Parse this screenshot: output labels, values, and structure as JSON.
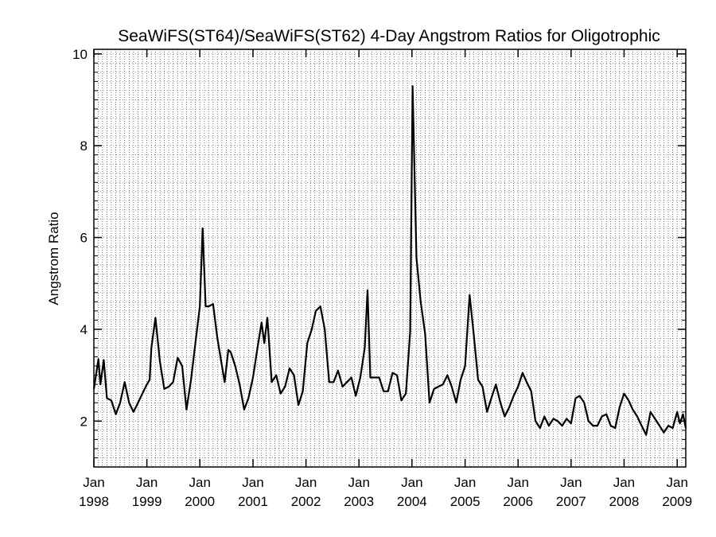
{
  "chart_data": {
    "type": "line",
    "title": "SeaWiFS(ST64)/SeaWiFS(ST62) 4-Day Angstrom Ratios for Oligotrophic",
    "xlabel": "",
    "ylabel": "Angstrom Ratio",
    "x_axis": {
      "type": "date",
      "range": [
        "1998-01-01",
        "2009-03-01"
      ],
      "tick_labels": [
        {
          "date": "1998-01-01",
          "month": "Jan",
          "year": "1998"
        },
        {
          "date": "1999-01-01",
          "month": "Jan",
          "year": "1999"
        },
        {
          "date": "2000-01-01",
          "month": "Jan",
          "year": "2000"
        },
        {
          "date": "2001-01-01",
          "month": "Jan",
          "year": "2001"
        },
        {
          "date": "2002-01-01",
          "month": "Jan",
          "year": "2002"
        },
        {
          "date": "2003-01-01",
          "month": "Jan",
          "year": "2003"
        },
        {
          "date": "2004-01-01",
          "month": "Jan",
          "year": "2004"
        },
        {
          "date": "2005-01-01",
          "month": "Jan",
          "year": "2005"
        },
        {
          "date": "2006-01-01",
          "month": "Jan",
          "year": "2006"
        },
        {
          "date": "2007-01-01",
          "month": "Jan",
          "year": "2007"
        },
        {
          "date": "2008-01-01",
          "month": "Jan",
          "year": "2008"
        },
        {
          "date": "2009-01-01",
          "month": "Jan",
          "year": "2009"
        }
      ]
    },
    "y_axis": {
      "range": [
        1.0,
        10.1
      ],
      "ticks": [
        2,
        4,
        6,
        8,
        10
      ]
    },
    "grid": true,
    "grid_style": "dotted vertical lines (monthly) and horizontal dotted lines",
    "series": [
      {
        "color": "#000000",
        "points": [
          [
            "1998-01-01",
            2.7
          ],
          [
            "1998-02-01",
            3.35
          ],
          [
            "1998-02-15",
            2.8
          ],
          [
            "1998-03-10",
            3.33
          ],
          [
            "1998-04-01",
            2.5
          ],
          [
            "1998-05-01",
            2.45
          ],
          [
            "1998-06-01",
            2.15
          ],
          [
            "1998-07-01",
            2.4
          ],
          [
            "1998-08-01",
            2.85
          ],
          [
            "1998-09-01",
            2.4
          ],
          [
            "1998-10-01",
            2.2
          ],
          [
            "1998-11-01",
            2.4
          ],
          [
            "1998-12-01",
            2.6
          ],
          [
            "1999-01-01",
            2.8
          ],
          [
            "1999-01-20",
            2.9
          ],
          [
            "1999-02-01",
            3.6
          ],
          [
            "1999-03-01",
            4.25
          ],
          [
            "1999-04-01",
            3.3
          ],
          [
            "1999-05-01",
            2.7
          ],
          [
            "1999-06-01",
            2.75
          ],
          [
            "1999-07-01",
            2.85
          ],
          [
            "1999-08-01",
            3.38
          ],
          [
            "1999-09-01",
            3.2
          ],
          [
            "1999-10-01",
            2.25
          ],
          [
            "1999-11-01",
            2.9
          ],
          [
            "1999-12-01",
            3.7
          ],
          [
            "2000-01-01",
            4.5
          ],
          [
            "2000-01-20",
            6.2
          ],
          [
            "2000-02-10",
            4.5
          ],
          [
            "2000-03-01",
            4.5
          ],
          [
            "2000-04-01",
            4.55
          ],
          [
            "2000-05-01",
            3.8
          ],
          [
            "2000-06-01",
            3.2
          ],
          [
            "2000-06-20",
            2.85
          ],
          [
            "2000-07-15",
            3.55
          ],
          [
            "2000-08-01",
            3.5
          ],
          [
            "2000-09-01",
            3.2
          ],
          [
            "2000-10-01",
            2.8
          ],
          [
            "2000-11-01",
            2.25
          ],
          [
            "2000-12-01",
            2.5
          ],
          [
            "2001-01-01",
            2.95
          ],
          [
            "2001-02-01",
            3.6
          ],
          [
            "2001-03-01",
            4.15
          ],
          [
            "2001-03-20",
            3.7
          ],
          [
            "2001-04-10",
            4.25
          ],
          [
            "2001-05-10",
            2.85
          ],
          [
            "2001-06-10",
            3.0
          ],
          [
            "2001-07-10",
            2.6
          ],
          [
            "2001-08-10",
            2.75
          ],
          [
            "2001-09-10",
            3.15
          ],
          [
            "2001-10-10",
            3.0
          ],
          [
            "2001-11-10",
            2.35
          ],
          [
            "2001-12-10",
            2.65
          ],
          [
            "2002-01-10",
            3.7
          ],
          [
            "2002-02-10",
            4.0
          ],
          [
            "2002-03-10",
            4.4
          ],
          [
            "2002-04-10",
            4.5
          ],
          [
            "2002-05-10",
            4.0
          ],
          [
            "2002-06-10",
            2.85
          ],
          [
            "2002-07-10",
            2.85
          ],
          [
            "2002-08-10",
            3.1
          ],
          [
            "2002-09-10",
            2.75
          ],
          [
            "2002-10-10",
            2.85
          ],
          [
            "2002-11-10",
            2.95
          ],
          [
            "2002-12-10",
            2.55
          ],
          [
            "2003-01-10",
            2.95
          ],
          [
            "2003-02-10",
            3.6
          ],
          [
            "2003-03-01",
            4.85
          ],
          [
            "2003-03-20",
            2.95
          ],
          [
            "2003-04-20",
            2.95
          ],
          [
            "2003-05-20",
            2.95
          ],
          [
            "2003-06-20",
            2.65
          ],
          [
            "2003-07-20",
            2.65
          ],
          [
            "2003-08-20",
            3.05
          ],
          [
            "2003-09-20",
            3.0
          ],
          [
            "2003-10-20",
            2.45
          ],
          [
            "2003-11-20",
            2.6
          ],
          [
            "2003-12-20",
            3.95
          ],
          [
            "2004-01-05",
            9.3
          ],
          [
            "2004-02-01",
            5.55
          ],
          [
            "2004-03-01",
            4.6
          ],
          [
            "2004-04-01",
            3.9
          ],
          [
            "2004-05-01",
            2.4
          ],
          [
            "2004-06-01",
            2.7
          ],
          [
            "2004-07-01",
            2.75
          ],
          [
            "2004-08-01",
            2.8
          ],
          [
            "2004-09-01",
            3.0
          ],
          [
            "2004-10-01",
            2.75
          ],
          [
            "2004-11-01",
            2.4
          ],
          [
            "2004-12-01",
            2.9
          ],
          [
            "2005-01-01",
            3.2
          ],
          [
            "2005-02-01",
            4.75
          ],
          [
            "2005-03-01",
            3.9
          ],
          [
            "2005-04-01",
            2.9
          ],
          [
            "2005-05-01",
            2.75
          ],
          [
            "2005-06-01",
            2.2
          ],
          [
            "2005-07-01",
            2.5
          ],
          [
            "2005-08-01",
            2.8
          ],
          [
            "2005-09-01",
            2.4
          ],
          [
            "2005-10-01",
            2.1
          ],
          [
            "2005-11-01",
            2.3
          ],
          [
            "2005-12-01",
            2.55
          ],
          [
            "2006-01-01",
            2.75
          ],
          [
            "2006-02-01",
            3.05
          ],
          [
            "2006-03-01",
            2.85
          ],
          [
            "2006-04-01",
            2.65
          ],
          [
            "2006-05-01",
            2.0
          ],
          [
            "2006-06-01",
            1.85
          ],
          [
            "2006-07-01",
            2.1
          ],
          [
            "2006-08-01",
            1.9
          ],
          [
            "2006-09-01",
            2.05
          ],
          [
            "2006-10-01",
            2.0
          ],
          [
            "2006-11-01",
            1.9
          ],
          [
            "2006-12-01",
            2.05
          ],
          [
            "2007-01-01",
            1.95
          ],
          [
            "2007-02-01",
            2.5
          ],
          [
            "2007-03-01",
            2.55
          ],
          [
            "2007-04-01",
            2.4
          ],
          [
            "2007-05-01",
            2.0
          ],
          [
            "2007-06-01",
            1.9
          ],
          [
            "2007-07-01",
            1.9
          ],
          [
            "2007-08-01",
            2.1
          ],
          [
            "2007-09-01",
            2.15
          ],
          [
            "2007-10-01",
            1.9
          ],
          [
            "2007-11-01",
            1.85
          ],
          [
            "2007-12-01",
            2.3
          ],
          [
            "2008-01-01",
            2.6
          ],
          [
            "2008-02-01",
            2.45
          ],
          [
            "2008-03-01",
            2.25
          ],
          [
            "2008-04-01",
            2.1
          ],
          [
            "2008-05-01",
            1.9
          ],
          [
            "2008-06-01",
            1.7
          ],
          [
            "2008-07-01",
            2.2
          ],
          [
            "2008-08-01",
            2.05
          ],
          [
            "2008-09-01",
            1.9
          ],
          [
            "2008-10-01",
            1.75
          ],
          [
            "2008-11-01",
            1.9
          ],
          [
            "2008-12-01",
            1.85
          ],
          [
            "2009-01-01",
            2.2
          ],
          [
            "2009-01-20",
            1.95
          ],
          [
            "2009-02-10",
            2.15
          ],
          [
            "2009-03-01",
            1.85
          ]
        ]
      }
    ]
  }
}
